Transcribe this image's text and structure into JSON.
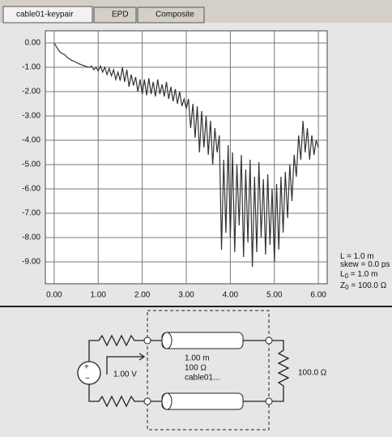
{
  "tabs": [
    "cable01-keypair",
    "EPD",
    "Composite"
  ],
  "chart_data": {
    "type": "line",
    "color": "#333333",
    "grid": true,
    "x": [
      0,
      0.05,
      0.1,
      0.15,
      0.2,
      0.25,
      0.3,
      0.35,
      0.4,
      0.45,
      0.5,
      0.55,
      0.6,
      0.65,
      0.7,
      0.75,
      0.8,
      0.85,
      0.9,
      0.95,
      1.0,
      1.05,
      1.1,
      1.15,
      1.2,
      1.25,
      1.3,
      1.35,
      1.4,
      1.45,
      1.5,
      1.55,
      1.6,
      1.65,
      1.7,
      1.75,
      1.8,
      1.85,
      1.9,
      1.95,
      2.0,
      2.05,
      2.1,
      2.15,
      2.2,
      2.25,
      2.3,
      2.35,
      2.4,
      2.45,
      2.5,
      2.55,
      2.6,
      2.65,
      2.7,
      2.75,
      2.8,
      2.85,
      2.9,
      2.95,
      3.0,
      3.05,
      3.1,
      3.15,
      3.2,
      3.25,
      3.3,
      3.35,
      3.4,
      3.45,
      3.5,
      3.55,
      3.6,
      3.65,
      3.7,
      3.75,
      3.8,
      3.85,
      3.9,
      3.95,
      4.0,
      4.05,
      4.1,
      4.15,
      4.2,
      4.25,
      4.3,
      4.35,
      4.4,
      4.45,
      4.5,
      4.55,
      4.6,
      4.65,
      4.7,
      4.75,
      4.8,
      4.85,
      4.9,
      4.95,
      5.0,
      5.05,
      5.1,
      5.15,
      5.2,
      5.25,
      5.3,
      5.35,
      5.4,
      5.45,
      5.5,
      5.55,
      5.6,
      5.65,
      5.7,
      5.75,
      5.8,
      5.85,
      5.9,
      5.95,
      6.0
    ],
    "values": [
      0,
      -0.15,
      -0.3,
      -0.4,
      -0.45,
      -0.5,
      -0.6,
      -0.65,
      -0.72,
      -0.75,
      -0.8,
      -0.85,
      -0.88,
      -0.92,
      -0.95,
      -0.98,
      -1.0,
      -0.95,
      -1.1,
      -1.0,
      -1.15,
      -0.95,
      -1.2,
      -1.0,
      -1.3,
      -1.05,
      -1.35,
      -1.1,
      -1.5,
      -1.2,
      -1.55,
      -1.0,
      -1.6,
      -1.1,
      -1.8,
      -1.3,
      -1.75,
      -1.4,
      -2.0,
      -1.5,
      -2.1,
      -1.5,
      -2.15,
      -1.45,
      -2.1,
      -1.6,
      -2.2,
      -1.5,
      -2.1,
      -1.7,
      -2.2,
      -1.6,
      -2.3,
      -1.8,
      -2.4,
      -1.9,
      -2.5,
      -2.0,
      -2.6,
      -2.3,
      -2.7,
      -2.3,
      -3.5,
      -2.5,
      -3.9,
      -2.6,
      -4.5,
      -2.8,
      -4.3,
      -3.0,
      -4.6,
      -3.2,
      -5.0,
      -3.5,
      -4.5,
      -3.8,
      -8.5,
      -4.8,
      -7.8,
      -4.2,
      -8.0,
      -4.5,
      -8.6,
      -5.0,
      -7.5,
      -4.6,
      -8.8,
      -5.2,
      -8.2,
      -4.8,
      -9.2,
      -5.5,
      -8.6,
      -4.9,
      -8.0,
      -5.6,
      -8.7,
      -5.4,
      -8.3,
      -6.0,
      -9.0,
      -5.8,
      -8.5,
      -5.5,
      -7.8,
      -5.3,
      -7.2,
      -5.0,
      -6.5,
      -4.6,
      -5.5,
      -3.8,
      -4.8,
      -3.2,
      -4.5,
      -3.5,
      -4.8,
      -3.8,
      -4.6,
      -4.0,
      -4.3
    ],
    "xlim": [
      -0.2,
      6.2
    ],
    "ylim": [
      -9.9,
      0.5
    ],
    "xticks": [
      {
        "value": 0,
        "label": "0.00"
      },
      {
        "value": 1,
        "label": "1.00"
      },
      {
        "value": 2,
        "label": "2.00"
      },
      {
        "value": 3,
        "label": "3.00"
      },
      {
        "value": 4,
        "label": "4.00"
      },
      {
        "value": 5,
        "label": "5.00"
      },
      {
        "value": 6,
        "label": "6.00"
      }
    ],
    "yticks": [
      {
        "value": 0,
        "label": "0.00"
      },
      {
        "value": -1,
        "label": "-1.00"
      },
      {
        "value": -2,
        "label": "-2.00"
      },
      {
        "value": -3,
        "label": "-3.00"
      },
      {
        "value": -4,
        "label": "-4.00"
      },
      {
        "value": -5,
        "label": "-5.00"
      },
      {
        "value": -6,
        "label": "-6.00"
      },
      {
        "value": -7,
        "label": "-7.00"
      },
      {
        "value": -8,
        "label": "-8.00"
      },
      {
        "value": -9,
        "label": "-9.00"
      }
    ]
  },
  "params": [
    {
      "name": "L",
      "value": "= 1.0 m"
    },
    {
      "name": "skew",
      "value": "= 0.0 ps"
    },
    {
      "name": "L",
      "sub": "0",
      "value": "= 1.0 m"
    },
    {
      "name": "Z",
      "sub": "0",
      "value": "= 100.0 Ω"
    }
  ],
  "circuit": {
    "source": "1.00 V",
    "length": "1.00 m",
    "impedance": "100 Ω",
    "cable": "cable01...",
    "load": "100.0 Ω"
  }
}
